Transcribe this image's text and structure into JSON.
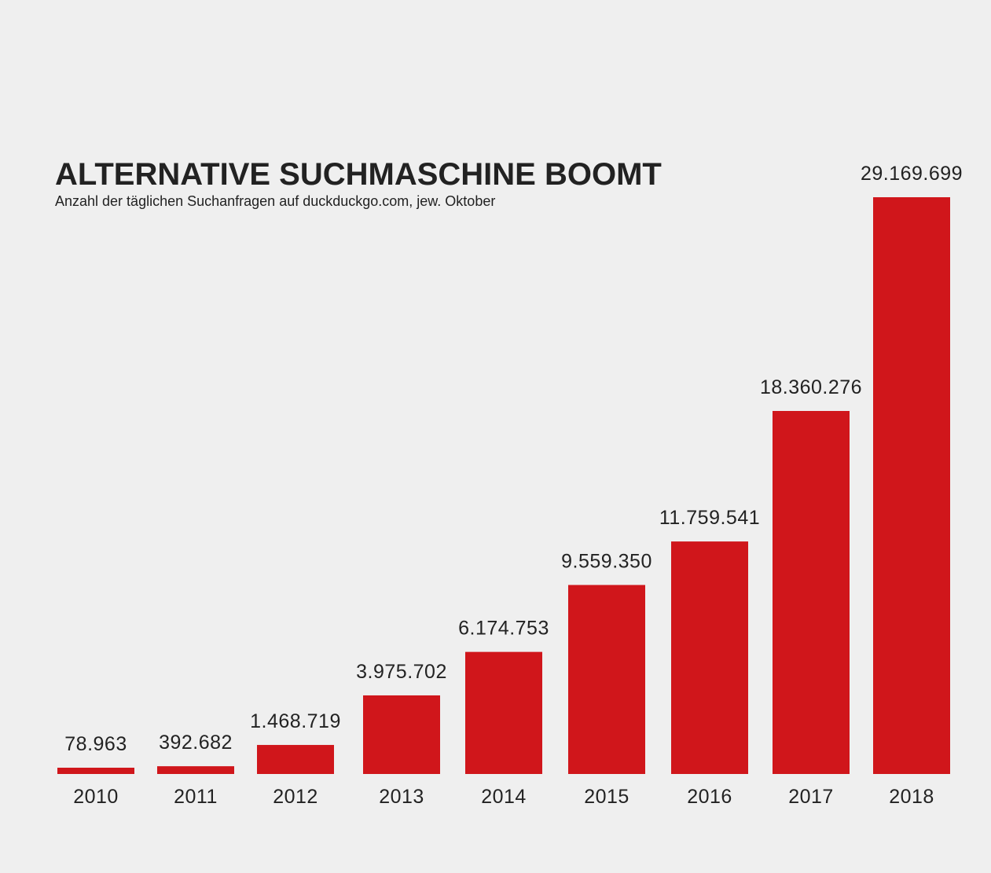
{
  "chart_data": {
    "type": "bar",
    "title": "ALTERNATIVE SUCHMASCHINE BOOMT",
    "subtitle": "Anzahl der täglichen Suchanfragen auf duckduckgo.com, jew. Oktober",
    "xlabel": "",
    "ylabel": "",
    "categories": [
      "2010",
      "2011",
      "2012",
      "2013",
      "2014",
      "2015",
      "2016",
      "2017",
      "2018"
    ],
    "values": [
      78963,
      392682,
      1468719,
      3975702,
      6174753,
      9559350,
      11759541,
      18360276,
      29169699
    ],
    "value_labels": [
      "78.963",
      "392.682",
      "1.468.719",
      "3.975.702",
      "6.174.753",
      "9.559.350",
      "11.759.541",
      "18.360.276",
      "29.169.699"
    ],
    "ylim": [
      0,
      29169699
    ],
    "grid": false,
    "bar_color": "#d0161b"
  }
}
